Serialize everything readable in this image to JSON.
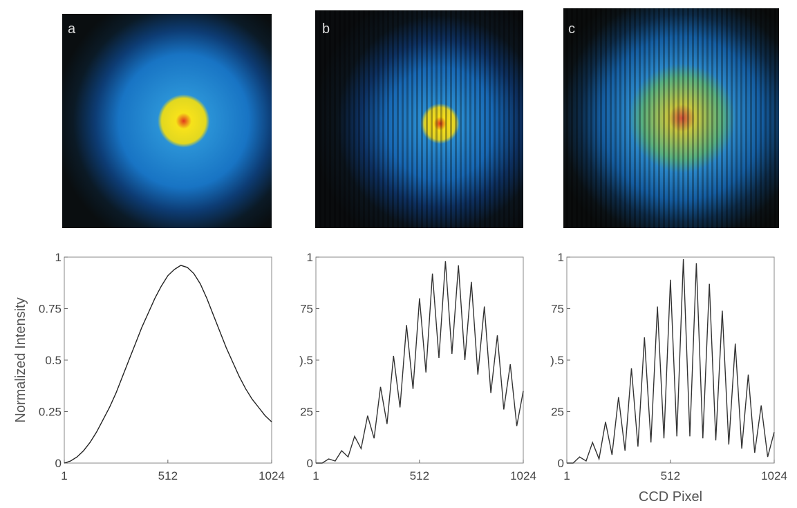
{
  "chart_data": [
    {
      "type": "line",
      "panel_label": "a",
      "ylabel": "Normalized Intensity",
      "x": [
        1,
        32,
        64,
        96,
        128,
        160,
        192,
        224,
        256,
        288,
        320,
        352,
        384,
        416,
        448,
        480,
        512,
        544,
        576,
        608,
        640,
        672,
        704,
        736,
        768,
        800,
        832,
        864,
        896,
        928,
        960,
        992,
        1024
      ],
      "series": [
        {
          "color": "#222222",
          "values": [
            0.0,
            0.01,
            0.03,
            0.06,
            0.1,
            0.15,
            0.21,
            0.27,
            0.34,
            0.42,
            0.5,
            0.58,
            0.66,
            0.73,
            0.8,
            0.86,
            0.91,
            0.94,
            0.96,
            0.95,
            0.92,
            0.87,
            0.8,
            0.72,
            0.64,
            0.56,
            0.49,
            0.42,
            0.36,
            0.31,
            0.27,
            0.23,
            0.2
          ]
        }
      ],
      "xlim": [
        1,
        1024
      ],
      "ylim": [
        0,
        1
      ],
      "xticks": [
        1,
        512,
        1024
      ],
      "yticks": [
        0,
        0.25,
        0.5,
        0.75,
        1
      ]
    },
    {
      "type": "line",
      "panel_label": "b",
      "x": [
        1,
        32,
        64,
        96,
        128,
        160,
        192,
        224,
        256,
        288,
        320,
        352,
        384,
        416,
        448,
        480,
        512,
        544,
        576,
        608,
        640,
        672,
        704,
        736,
        768,
        800,
        832,
        864,
        896,
        928,
        960,
        992,
        1024
      ],
      "series": [
        {
          "color": "#333333",
          "values": [
            0.0,
            0.0,
            0.02,
            0.01,
            0.06,
            0.03,
            0.13,
            0.07,
            0.23,
            0.12,
            0.37,
            0.19,
            0.52,
            0.27,
            0.67,
            0.36,
            0.8,
            0.44,
            0.92,
            0.51,
            0.98,
            0.53,
            0.96,
            0.5,
            0.88,
            0.43,
            0.76,
            0.34,
            0.62,
            0.26,
            0.48,
            0.18,
            0.35
          ]
        }
      ],
      "xlim": [
        1,
        1024
      ],
      "ylim": [
        0,
        1
      ],
      "xticks": [
        1,
        512,
        1024
      ],
      "yticks": [
        0,
        {
          "value": 0.25,
          "label": "25"
        },
        {
          "value": 0.5,
          "label": ").5"
        },
        {
          "value": 0.75,
          "label": "75"
        },
        1
      ]
    },
    {
      "type": "line",
      "panel_label": "c",
      "xlabel": "CCD Pixel",
      "x": [
        1,
        32,
        64,
        96,
        128,
        160,
        192,
        224,
        256,
        288,
        320,
        352,
        384,
        416,
        448,
        480,
        512,
        544,
        576,
        608,
        640,
        672,
        704,
        736,
        768,
        800,
        832,
        864,
        896,
        928,
        960,
        992,
        1024
      ],
      "series": [
        {
          "color": "#333333",
          "values": [
            0.0,
            0.0,
            0.03,
            0.01,
            0.1,
            0.02,
            0.2,
            0.04,
            0.32,
            0.06,
            0.46,
            0.08,
            0.61,
            0.1,
            0.76,
            0.12,
            0.89,
            0.13,
            0.99,
            0.13,
            0.97,
            0.12,
            0.87,
            0.11,
            0.74,
            0.09,
            0.58,
            0.07,
            0.43,
            0.05,
            0.28,
            0.03,
            0.15
          ]
        }
      ],
      "xlim": [
        1,
        1024
      ],
      "ylim": [
        0,
        1
      ],
      "xticks": [
        1,
        512,
        1024
      ],
      "yticks": [
        0,
        {
          "value": 0.25,
          "label": "25"
        },
        {
          "value": 0.5,
          "label": ").5"
        },
        {
          "value": 0.75,
          "label": "75"
        },
        1
      ]
    }
  ]
}
